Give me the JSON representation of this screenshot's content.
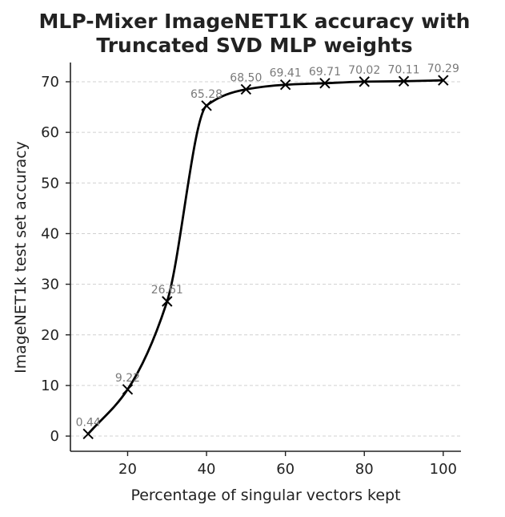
{
  "chart_data": {
    "type": "line",
    "title_lines": [
      "MLP-Mixer ImageNET1K accuracy with",
      "Truncated SVD MLP weights"
    ],
    "xlabel": "Percentage of singular vectors kept",
    "ylabel": "ImageNET1k test set accuracy",
    "x": [
      10,
      20,
      30,
      40,
      50,
      60,
      70,
      80,
      90,
      100
    ],
    "y": [
      0.44,
      9.22,
      26.61,
      65.28,
      68.5,
      69.41,
      69.71,
      70.02,
      70.11,
      70.29
    ],
    "data_labels": [
      "0.44",
      "9.22",
      "26.61",
      "65.28",
      "68.50",
      "69.41",
      "69.71",
      "70.02",
      "70.11",
      "70.29"
    ],
    "xticks": [
      20,
      40,
      60,
      80,
      100
    ],
    "xtick_labels": [
      "20",
      "40",
      "60",
      "80",
      "100"
    ],
    "yticks": [
      0,
      10,
      20,
      30,
      40,
      50,
      60,
      70
    ],
    "ytick_labels": [
      "0",
      "10",
      "20",
      "30",
      "40",
      "50",
      "60",
      "70"
    ],
    "xlim": [
      5.5,
      104.5
    ],
    "ylim": [
      -3.0,
      73.8
    ],
    "grid": "y-dashed",
    "marker": "x",
    "line_color": "#000000",
    "label_color": "#7a7a7a"
  }
}
